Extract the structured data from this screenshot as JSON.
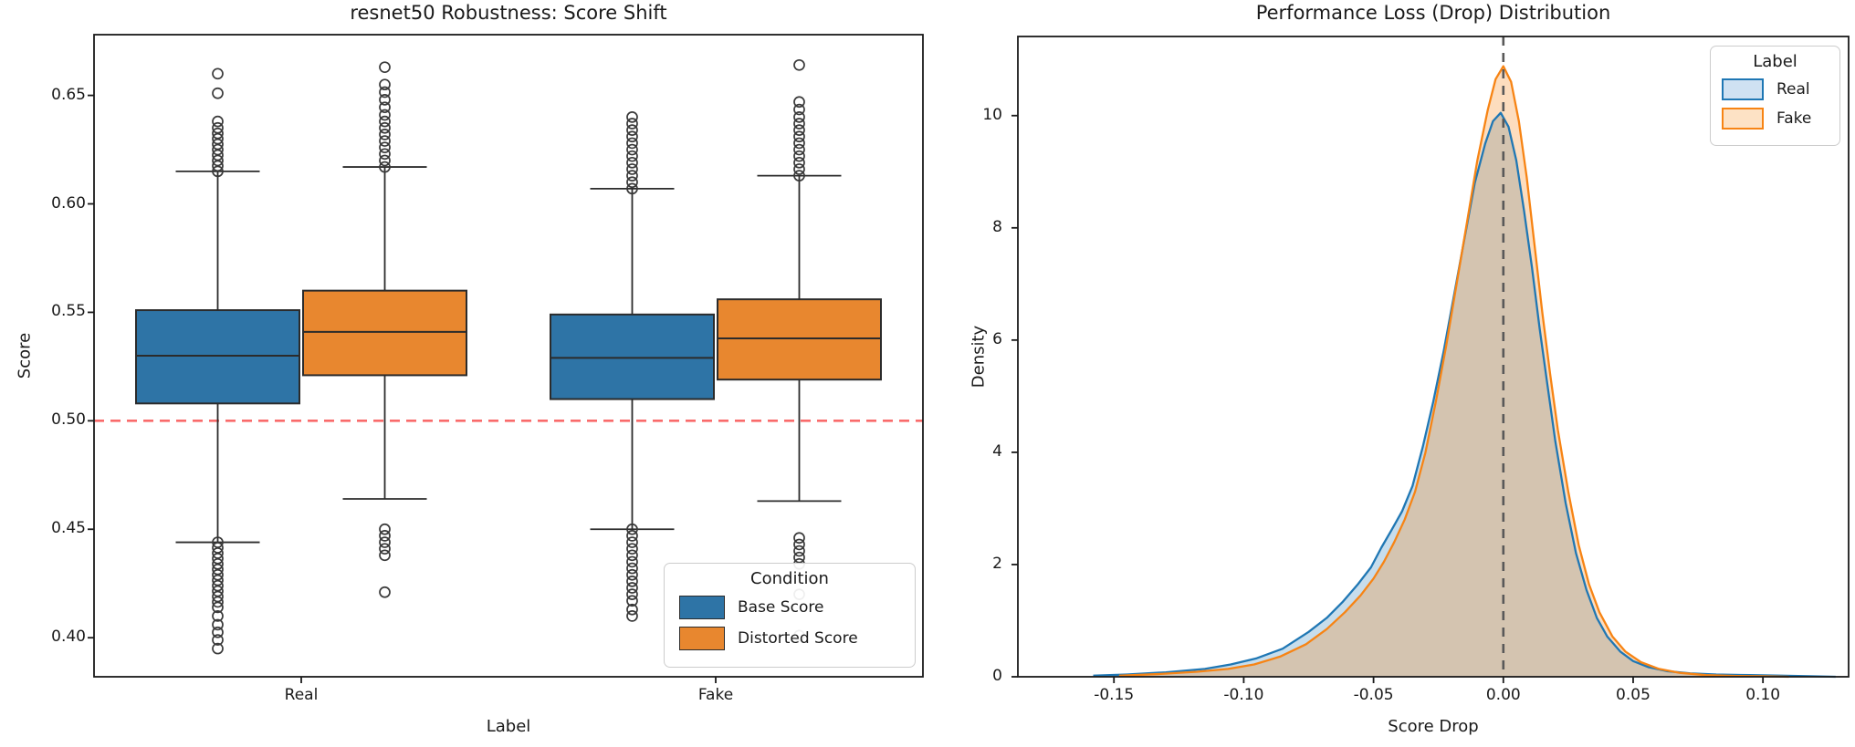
{
  "colors": {
    "box_blue": "#2e74a6",
    "box_orange": "#e8872f",
    "kde_blue": "#1f77b4",
    "kde_orange": "#f78414",
    "kde_blue_fill_rgba": "rgba(31,119,180,0.25)",
    "kde_orange_fill_rgba": "rgba(247,132,20,0.28)",
    "legend_blue_fill": "#cfe1f2",
    "legend_orange_fill": "#fde2c5",
    "refline_red": "#f96b6b",
    "vline_gray": "#595959",
    "axis_dark": "#1a1a1a",
    "box_edge": "#2b2b2b",
    "flier_edge": "#3a3a3a"
  },
  "chart_data": [
    {
      "type": "box",
      "title": "resnet50 Robustness: Score Shift",
      "xlabel": "Label",
      "ylabel": "Score",
      "categories": [
        "Real",
        "Fake"
      ],
      "ytick_labels": [
        "0.65",
        "0.60",
        "0.55",
        "0.50",
        "0.45",
        "0.40"
      ],
      "ytick_values": [
        0.65,
        0.6,
        0.55,
        0.5,
        0.45,
        0.4
      ],
      "ylim": [
        0.382,
        0.678
      ],
      "refline": 0.5,
      "legend": {
        "title": "Condition",
        "entries": [
          {
            "label": "Base Score"
          },
          {
            "label": "Distorted Score"
          }
        ]
      },
      "series": [
        {
          "name": "Base Score",
          "boxes": [
            {
              "category": "Real",
              "q1": 0.508,
              "median": 0.53,
              "q3": 0.551,
              "whisker_low": 0.444,
              "whisker_high": 0.615,
              "outliers_high": [
                0.615,
                0.6175,
                0.62,
                0.6225,
                0.625,
                0.6275,
                0.63,
                0.6325,
                0.635,
                0.638,
                0.651,
                0.66
              ],
              "outliers_low": [
                0.444,
                0.4415,
                0.439,
                0.4365,
                0.434,
                0.4315,
                0.429,
                0.4265,
                0.424,
                0.4215,
                0.419,
                0.4165,
                0.414,
                0.41,
                0.406,
                0.4025,
                0.399,
                0.395
              ]
            },
            {
              "category": "Fake",
              "q1": 0.51,
              "median": 0.529,
              "q3": 0.549,
              "whisker_low": 0.45,
              "whisker_high": 0.607,
              "outliers_high": [
                0.607,
                0.61,
                0.613,
                0.616,
                0.619,
                0.622,
                0.625,
                0.628,
                0.631,
                0.634,
                0.637,
                0.64
              ],
              "outliers_low": [
                0.45,
                0.447,
                0.444,
                0.441,
                0.438,
                0.435,
                0.432,
                0.429,
                0.426,
                0.423,
                0.42,
                0.417,
                0.413,
                0.41
              ]
            }
          ]
        },
        {
          "name": "Distorted Score",
          "boxes": [
            {
              "category": "Real",
              "q1": 0.521,
              "median": 0.541,
              "q3": 0.56,
              "whisker_low": 0.464,
              "whisker_high": 0.617,
              "outliers_high": [
                0.617,
                0.62,
                0.623,
                0.626,
                0.629,
                0.632,
                0.635,
                0.638,
                0.641,
                0.6445,
                0.648,
                0.6515,
                0.655,
                0.663
              ],
              "outliers_low": [
                0.45,
                0.447,
                0.444,
                0.441,
                0.438,
                0.421
              ]
            },
            {
              "category": "Fake",
              "q1": 0.519,
              "median": 0.538,
              "q3": 0.556,
              "whisker_low": 0.463,
              "whisker_high": 0.613,
              "outliers_high": [
                0.613,
                0.616,
                0.619,
                0.622,
                0.625,
                0.628,
                0.631,
                0.634,
                0.637,
                0.64,
                0.6435,
                0.647,
                0.664
              ],
              "outliers_low": [
                0.446,
                0.443,
                0.44,
                0.437,
                0.434,
                0.42,
                0.401
              ]
            }
          ]
        }
      ]
    },
    {
      "type": "area",
      "title": "Performance Loss (Drop) Distribution",
      "xlabel": "Score Drop",
      "ylabel": "Density",
      "xtick_labels": [
        "-0.15",
        "-0.10",
        "-0.05",
        "0.00",
        "0.05",
        "0.10"
      ],
      "xtick_values": [
        -0.15,
        -0.1,
        -0.05,
        0.0,
        0.05,
        0.1
      ],
      "ytick_labels": [
        "0",
        "2",
        "4",
        "6",
        "8",
        "10"
      ],
      "ytick_values": [
        0,
        2,
        4,
        6,
        8,
        10
      ],
      "xlim": [
        -0.187,
        0.133
      ],
      "ylim": [
        0,
        11.41
      ],
      "vline": 0.0,
      "legend": {
        "title": "Label",
        "entries": [
          {
            "label": "Real"
          },
          {
            "label": "Fake"
          }
        ]
      },
      "series": [
        {
          "name": "Real",
          "points": [
            [
              -0.158,
              0.02
            ],
            [
              -0.145,
              0.04
            ],
            [
              -0.13,
              0.08
            ],
            [
              -0.115,
              0.14
            ],
            [
              -0.105,
              0.22
            ],
            [
              -0.095,
              0.33
            ],
            [
              -0.085,
              0.5
            ],
            [
              -0.075,
              0.8
            ],
            [
              -0.068,
              1.05
            ],
            [
              -0.062,
              1.33
            ],
            [
              -0.056,
              1.65
            ],
            [
              -0.051,
              1.95
            ],
            [
              -0.047,
              2.3
            ],
            [
              -0.043,
              2.62
            ],
            [
              -0.039,
              2.95
            ],
            [
              -0.035,
              3.4
            ],
            [
              -0.031,
              4.1
            ],
            [
              -0.027,
              4.9
            ],
            [
              -0.023,
              5.8
            ],
            [
              -0.019,
              6.8
            ],
            [
              -0.015,
              7.8
            ],
            [
              -0.011,
              8.8
            ],
            [
              -0.007,
              9.5
            ],
            [
              -0.004,
              9.9
            ],
            [
              -0.001,
              10.05
            ],
            [
              0.002,
              9.8
            ],
            [
              0.005,
              9.2
            ],
            [
              0.008,
              8.3
            ],
            [
              0.011,
              7.3
            ],
            [
              0.014,
              6.2
            ],
            [
              0.017,
              5.2
            ],
            [
              0.02,
              4.2
            ],
            [
              0.024,
              3.1
            ],
            [
              0.028,
              2.2
            ],
            [
              0.032,
              1.55
            ],
            [
              0.036,
              1.05
            ],
            [
              0.04,
              0.72
            ],
            [
              0.045,
              0.45
            ],
            [
              0.05,
              0.28
            ],
            [
              0.056,
              0.17
            ],
            [
              0.063,
              0.1
            ],
            [
              0.072,
              0.06
            ],
            [
              0.082,
              0.04
            ],
            [
              0.095,
              0.03
            ],
            [
              0.107,
              0.02
            ],
            [
              0.118,
              0.01
            ],
            [
              0.128,
              0.0
            ]
          ]
        },
        {
          "name": "Fake",
          "points": [
            [
              -0.148,
              0.02
            ],
            [
              -0.132,
              0.05
            ],
            [
              -0.118,
              0.09
            ],
            [
              -0.106,
              0.14
            ],
            [
              -0.096,
              0.22
            ],
            [
              -0.086,
              0.36
            ],
            [
              -0.076,
              0.58
            ],
            [
              -0.068,
              0.85
            ],
            [
              -0.061,
              1.15
            ],
            [
              -0.055,
              1.45
            ],
            [
              -0.05,
              1.75
            ],
            [
              -0.046,
              2.05
            ],
            [
              -0.042,
              2.4
            ],
            [
              -0.038,
              2.8
            ],
            [
              -0.034,
              3.3
            ],
            [
              -0.03,
              4.0
            ],
            [
              -0.026,
              4.9
            ],
            [
              -0.022,
              5.9
            ],
            [
              -0.018,
              7.0
            ],
            [
              -0.014,
              8.1
            ],
            [
              -0.01,
              9.2
            ],
            [
              -0.006,
              10.1
            ],
            [
              -0.003,
              10.65
            ],
            [
              0.0,
              10.88
            ],
            [
              0.003,
              10.6
            ],
            [
              0.006,
              9.9
            ],
            [
              0.009,
              8.9
            ],
            [
              0.012,
              7.7
            ],
            [
              0.015,
              6.5
            ],
            [
              0.018,
              5.4
            ],
            [
              0.021,
              4.4
            ],
            [
              0.025,
              3.3
            ],
            [
              0.029,
              2.35
            ],
            [
              0.033,
              1.65
            ],
            [
              0.037,
              1.15
            ],
            [
              0.042,
              0.72
            ],
            [
              0.047,
              0.45
            ],
            [
              0.053,
              0.26
            ],
            [
              0.06,
              0.14
            ],
            [
              0.068,
              0.07
            ],
            [
              0.078,
              0.03
            ],
            [
              0.09,
              0.015
            ],
            [
              0.1,
              0.01
            ],
            [
              0.11,
              0.0
            ]
          ]
        }
      ]
    }
  ]
}
